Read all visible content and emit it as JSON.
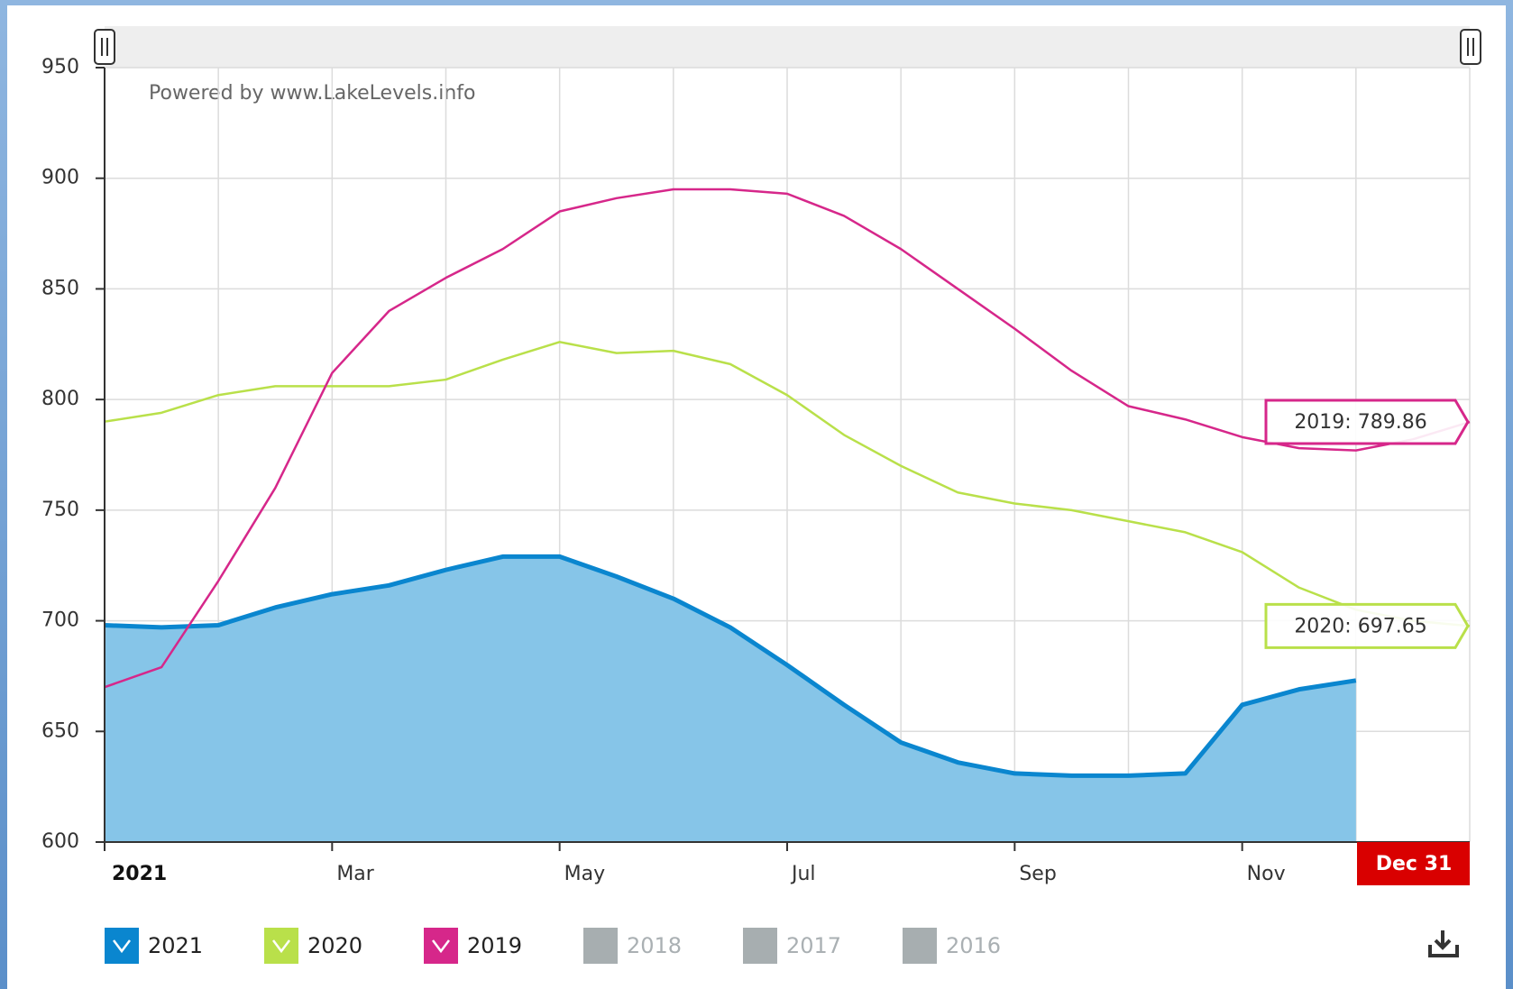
{
  "chart_data": {
    "type": "area-line",
    "annotation": "Powered by www.LakeLevels.info",
    "categories": [
      "2021",
      null,
      null,
      null,
      "Mar",
      null,
      null,
      null,
      "May",
      null,
      null,
      null,
      "Jul",
      null,
      null,
      null,
      "Sep",
      null,
      null,
      null,
      "Nov",
      null,
      null,
      null,
      "Dec 31"
    ],
    "series": [
      {
        "name": "2021",
        "color": "#0a86cf",
        "fill": "#86c5e8",
        "style": "area",
        "values": [
          698,
          697,
          698,
          706,
          712,
          716,
          723,
          729,
          729,
          720,
          710,
          697,
          680,
          662,
          645,
          636,
          631,
          630,
          630,
          631,
          662,
          669,
          673,
          null,
          null
        ]
      },
      {
        "name": "2020",
        "color": "#b9e04a",
        "style": "line",
        "tooltip": "2020: 697.65",
        "values": [
          790,
          794,
          802,
          806,
          806,
          806,
          809,
          818,
          826,
          821,
          822,
          816,
          802,
          784,
          770,
          758,
          753,
          750,
          745,
          740,
          731,
          715,
          705,
          700,
          697.65
        ]
      },
      {
        "name": "2019",
        "color": "#d6278a",
        "style": "line",
        "tooltip": "2019: 789.86",
        "values": [
          670,
          679,
          718,
          760,
          812,
          840,
          855,
          868,
          885,
          891,
          895,
          895,
          893,
          883,
          868,
          850,
          832,
          813,
          797,
          791,
          783,
          778,
          777,
          782,
          789.86
        ]
      }
    ],
    "inactive_series": [
      "2018",
      "2017",
      "2016"
    ],
    "ylim": [
      600,
      950
    ],
    "yticks": [
      600,
      650,
      700,
      750,
      800,
      850,
      900,
      950
    ],
    "grid": true
  }
}
